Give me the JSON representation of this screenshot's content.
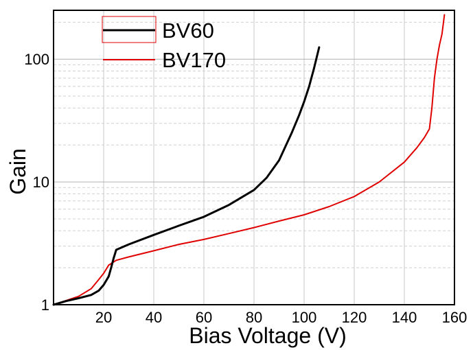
{
  "chart_data": {
    "type": "line",
    "xlabel": "Bias Voltage (V)",
    "ylabel": "Gain",
    "xlim": [
      0,
      160
    ],
    "ylim": [
      1,
      250
    ],
    "yscale": "log",
    "grid": true,
    "legend_position": "top-left",
    "x_ticks": [
      "20",
      "40",
      "60",
      "80",
      "100",
      "120",
      "140",
      "160"
    ],
    "y_ticks": [
      "1",
      "10",
      "100"
    ],
    "series": [
      {
        "name": "BV60",
        "color": "#000000",
        "x": [
          0,
          5,
          10,
          15,
          18,
          20,
          22,
          23,
          24,
          25,
          30,
          40,
          50,
          60,
          70,
          80,
          85,
          90,
          95,
          98,
          100,
          102,
          104,
          106
        ],
        "y": [
          1.0,
          1.07,
          1.13,
          1.2,
          1.3,
          1.45,
          1.7,
          2.0,
          2.4,
          2.8,
          3.1,
          3.7,
          4.4,
          5.2,
          6.5,
          8.6,
          10.8,
          15,
          25,
          35,
          45,
          60,
          85,
          125
        ]
      },
      {
        "name": "BV170",
        "color": "#e00000",
        "x": [
          0,
          5,
          10,
          15,
          18,
          20,
          22,
          25,
          30,
          40,
          50,
          60,
          70,
          80,
          90,
          100,
          110,
          120,
          130,
          140,
          145,
          148,
          150,
          151,
          152,
          153,
          154,
          155,
          156
        ],
        "y": [
          1.0,
          1.08,
          1.17,
          1.35,
          1.6,
          1.8,
          2.1,
          2.3,
          2.45,
          2.75,
          3.1,
          3.4,
          3.8,
          4.25,
          4.8,
          5.4,
          6.3,
          7.6,
          10,
          14.5,
          19,
          23,
          27,
          40,
          70,
          100,
          130,
          160,
          230
        ]
      }
    ]
  }
}
